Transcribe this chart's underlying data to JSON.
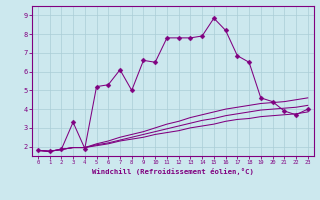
{
  "title": "",
  "xlabel": "Windchill (Refroidissement éolien,°C)",
  "ylabel": "",
  "background_color": "#cce8ee",
  "line_color": "#800080",
  "grid_color": "#aacdd6",
  "xlim": [
    -0.5,
    23.5
  ],
  "ylim": [
    1.5,
    9.5
  ],
  "xticks": [
    0,
    1,
    2,
    3,
    4,
    5,
    6,
    7,
    8,
    9,
    10,
    11,
    12,
    13,
    14,
    15,
    16,
    17,
    18,
    19,
    20,
    21,
    22,
    23
  ],
  "yticks": [
    2,
    3,
    4,
    5,
    6,
    7,
    8,
    9
  ],
  "series": [
    [
      1.8,
      1.75,
      1.85,
      3.3,
      1.9,
      5.2,
      5.3,
      6.1,
      5.0,
      6.6,
      6.5,
      7.8,
      7.8,
      7.8,
      7.9,
      8.85,
      8.2,
      6.85,
      6.5,
      4.6,
      4.4,
      3.9,
      3.7,
      4.0
    ],
    [
      1.8,
      1.75,
      1.85,
      1.95,
      1.95,
      2.05,
      2.15,
      2.3,
      2.4,
      2.5,
      2.65,
      2.75,
      2.85,
      3.0,
      3.1,
      3.2,
      3.35,
      3.45,
      3.5,
      3.6,
      3.65,
      3.7,
      3.75,
      3.85
    ],
    [
      1.8,
      1.75,
      1.85,
      1.95,
      1.95,
      2.1,
      2.2,
      2.35,
      2.5,
      2.65,
      2.8,
      2.95,
      3.1,
      3.25,
      3.4,
      3.5,
      3.65,
      3.75,
      3.85,
      3.95,
      4.0,
      4.05,
      4.1,
      4.2
    ],
    [
      1.8,
      1.75,
      1.85,
      1.95,
      1.95,
      2.15,
      2.3,
      2.5,
      2.65,
      2.8,
      3.0,
      3.2,
      3.35,
      3.55,
      3.7,
      3.85,
      4.0,
      4.1,
      4.2,
      4.3,
      4.35,
      4.4,
      4.5,
      4.6
    ]
  ],
  "marker": "D",
  "markersize": 2.5
}
